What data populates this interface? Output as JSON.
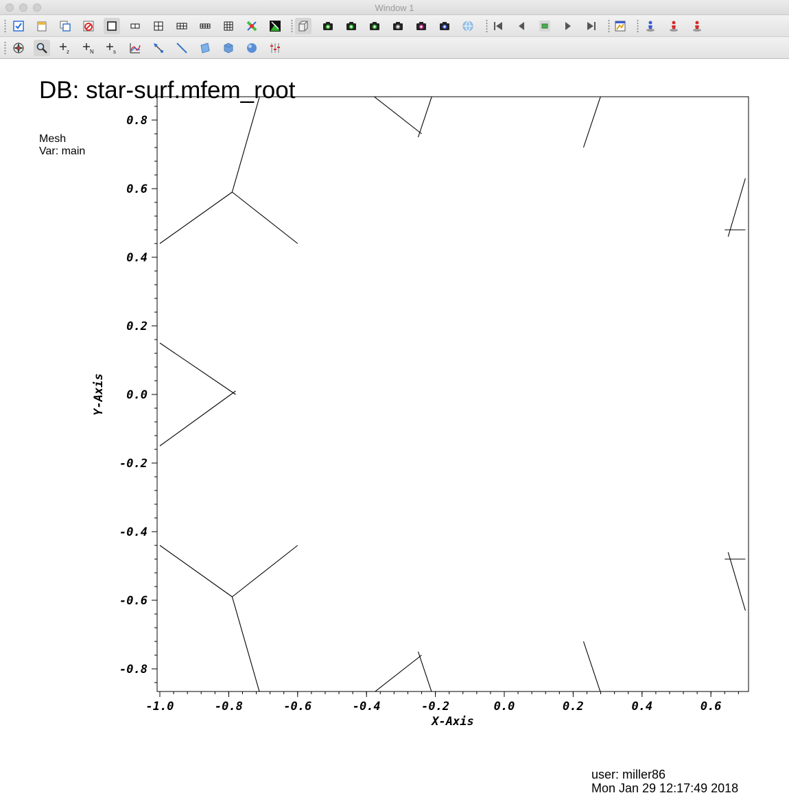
{
  "window": {
    "title": "Window 1"
  },
  "toolbar_row1": [
    {
      "name": "active-window-icon",
      "color": "#2a6fd6",
      "shape": "check"
    },
    {
      "name": "new-window-icon",
      "color": "#e7b94a",
      "shape": "doc"
    },
    {
      "name": "clone-window-icon",
      "color": "#3a78c8",
      "shape": "clone"
    },
    {
      "name": "delete-window-icon",
      "color": "#d62a2a",
      "shape": "delete"
    },
    {
      "name": "layout-1x1-icon",
      "color": "#111111",
      "shape": "layout1"
    },
    {
      "name": "layout-1x2-icon",
      "color": "#111111",
      "shape": "layout2"
    },
    {
      "name": "layout-2x2-icon",
      "color": "#111111",
      "shape": "layout4"
    },
    {
      "name": "layout-2x3-icon",
      "color": "#111111",
      "shape": "layout6"
    },
    {
      "name": "layout-2x4-icon",
      "color": "#111111",
      "shape": "layout8"
    },
    {
      "name": "layout-3x3-icon",
      "color": "#111111",
      "shape": "layout9"
    },
    {
      "name": "lock-view-icon",
      "color": "#3fbf3f",
      "shape": "lock"
    },
    {
      "name": "lock-time-icon",
      "color": "#2db32d",
      "shape": "locktime"
    },
    {
      "name": "box-3d-icon",
      "color": "#777777",
      "shape": "box"
    },
    {
      "name": "camera-save-icon",
      "color": "#2db32d",
      "shape": "camera"
    },
    {
      "name": "camera-print-icon",
      "color": "#2db32d",
      "shape": "camera"
    },
    {
      "name": "camera-icon",
      "color": "#2db32d",
      "shape": "camera"
    },
    {
      "name": "camera-gray-icon",
      "color": "#8a8a8a",
      "shape": "camera"
    },
    {
      "name": "camera-undo-icon",
      "color": "#c22f8a",
      "shape": "camera"
    },
    {
      "name": "camera-lock-icon",
      "color": "#3a5bd6",
      "shape": "camera"
    },
    {
      "name": "globe-spin-icon",
      "color": "#9cc4e8",
      "shape": "globe"
    },
    {
      "name": "rewind-icon",
      "color": "#555555",
      "shape": "rewind"
    },
    {
      "name": "step-back-icon",
      "color": "#555555",
      "shape": "back"
    },
    {
      "name": "stop-icon",
      "color": "#4caf50",
      "shape": "stop"
    },
    {
      "name": "play-icon",
      "color": "#555555",
      "shape": "play"
    },
    {
      "name": "fast-forward-icon",
      "color": "#555555",
      "shape": "ffwd"
    },
    {
      "name": "annotation-icon",
      "color": "#e0a020",
      "shape": "annot"
    },
    {
      "name": "pick-person-icon",
      "color": "#3a5bd6",
      "shape": "person"
    },
    {
      "name": "pick-person-red-icon",
      "color": "#d62a2a",
      "shape": "person"
    },
    {
      "name": "pick-person-stop-icon",
      "color": "#d62a2a",
      "shape": "person"
    }
  ],
  "toolbar_row2": [
    {
      "name": "navigate-icon",
      "color": "#333333",
      "shape": "compass"
    },
    {
      "name": "zoom-icon",
      "color": "#333333",
      "shape": "zoom"
    },
    {
      "name": "zone-pick-z-icon",
      "color": "#222222",
      "shape": "plus",
      "sub": "z"
    },
    {
      "name": "node-pick-n-icon",
      "color": "#222222",
      "shape": "plus",
      "sub": "N"
    },
    {
      "name": "spread-pick-s-icon",
      "color": "#222222",
      "shape": "plus",
      "sub": "s"
    },
    {
      "name": "curve-plot-icon",
      "color": "#d62a2a",
      "shape": "curve"
    },
    {
      "name": "pick-point-icon",
      "color": "#2a6fd6",
      "shape": "pickpoint"
    },
    {
      "name": "line-tool-icon",
      "color": "#3a78c8",
      "shape": "line"
    },
    {
      "name": "plane-tool-icon",
      "color": "#7fb2e8",
      "shape": "plane"
    },
    {
      "name": "box-tool-icon",
      "color": "#6e9fd6",
      "shape": "cube"
    },
    {
      "name": "sphere-tool-icon",
      "color": "#5a8fd6",
      "shape": "sphere"
    },
    {
      "name": "axis-sliders-icon",
      "color": "#d62a2a",
      "shape": "sliders"
    }
  ],
  "plot": {
    "title": "DB: star-surf.mfem_root",
    "legend_lines": [
      "Mesh",
      "Var: main"
    ],
    "user_label": "user: miller86",
    "timestamp": "Mon Jan 29 12:17:49 2018"
  },
  "chart_data": {
    "type": "line",
    "title": "DB: star-surf.mfem_root",
    "xlabel": "X-Axis",
    "ylabel": "Y-Axis",
    "xlim": [
      -1.0,
      0.7
    ],
    "ylim": [
      -0.87,
      0.87
    ],
    "x_ticks": [
      -1.0,
      -0.8,
      -0.6,
      -0.4,
      -0.2,
      0.0,
      0.2,
      0.4,
      0.6
    ],
    "x_tick_labels": [
      "-1.0",
      "-0.8",
      "-0.6",
      "-0.4",
      "-0.2",
      "0.0",
      "0.2",
      "0.4",
      "0.6"
    ],
    "y_ticks": [
      0.8,
      0.6,
      0.4,
      0.2,
      0.0,
      -0.2,
      -0.4,
      -0.6,
      -0.8
    ],
    "y_tick_labels": [
      "0.8",
      "0.6",
      "0.4",
      "0.2",
      "0.0",
      "-0.2",
      "-0.4",
      "-0.6",
      "-0.8"
    ],
    "color": "#000000",
    "grid": false,
    "segments": [
      [
        [
          -1.0,
          0.44
        ],
        [
          -0.79,
          0.59
        ]
      ],
      [
        [
          -0.79,
          0.59
        ],
        [
          -0.6,
          0.44
        ]
      ],
      [
        [
          -0.79,
          0.59
        ],
        [
          -0.71,
          0.87
        ]
      ],
      [
        [
          -0.38,
          0.87
        ],
        [
          -0.24,
          0.76
        ]
      ],
      [
        [
          -0.21,
          0.87
        ],
        [
          -0.25,
          0.75
        ]
      ],
      [
        [
          0.28,
          0.87
        ],
        [
          0.23,
          0.72
        ]
      ],
      [
        [
          0.7,
          0.63
        ],
        [
          0.65,
          0.46
        ]
      ],
      [
        [
          0.64,
          0.48
        ],
        [
          0.7,
          0.48
        ]
      ],
      [
        [
          -1.0,
          0.15
        ],
        [
          -0.78,
          0.0
        ]
      ],
      [
        [
          -1.0,
          -0.15
        ],
        [
          -0.78,
          0.01
        ]
      ],
      [
        [
          -1.0,
          -0.44
        ],
        [
          -0.79,
          -0.59
        ]
      ],
      [
        [
          -0.79,
          -0.59
        ],
        [
          -0.6,
          -0.44
        ]
      ],
      [
        [
          -0.79,
          -0.59
        ],
        [
          -0.71,
          -0.87
        ]
      ],
      [
        [
          -0.38,
          -0.87
        ],
        [
          -0.24,
          -0.76
        ]
      ],
      [
        [
          -0.21,
          -0.87
        ],
        [
          -0.25,
          -0.75
        ]
      ],
      [
        [
          0.28,
          -0.87
        ],
        [
          0.23,
          -0.72
        ]
      ],
      [
        [
          0.7,
          -0.63
        ],
        [
          0.65,
          -0.46
        ]
      ],
      [
        [
          0.64,
          -0.48
        ],
        [
          0.7,
          -0.48
        ]
      ]
    ]
  }
}
